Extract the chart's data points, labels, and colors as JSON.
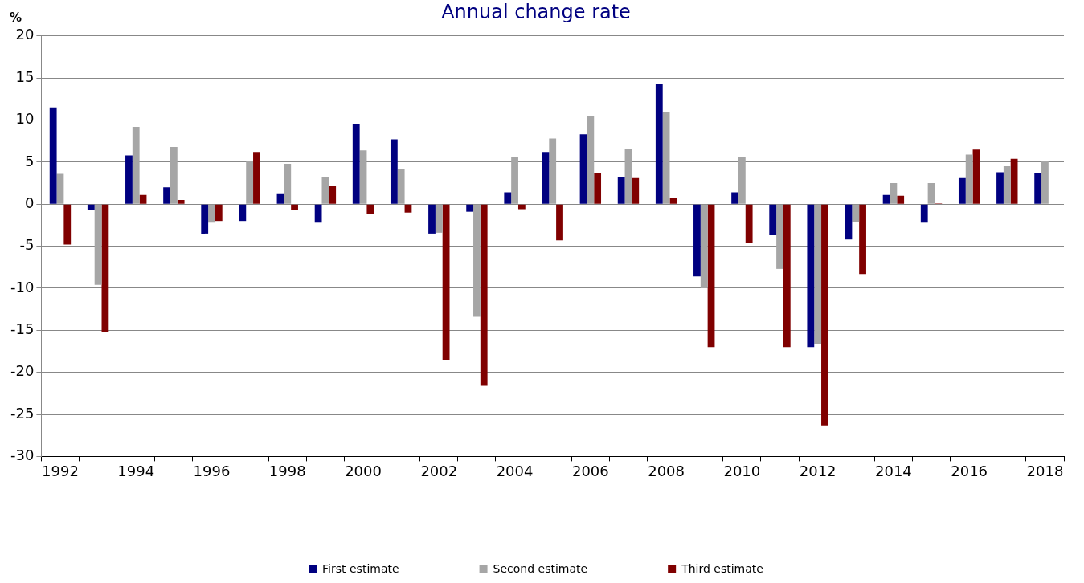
{
  "chart_data": {
    "type": "bar",
    "title": "Annual change rate",
    "ylabel": "%",
    "categories": [
      "1992",
      null,
      "1994",
      null,
      "1996",
      null,
      "1998",
      null,
      "2000",
      null,
      "2002",
      null,
      "2004",
      null,
      "2006",
      null,
      "2008",
      null,
      "2010",
      null,
      "2012",
      null,
      "2014",
      null,
      "2016",
      null,
      "2018"
    ],
    "series": [
      {
        "name": "First estimate",
        "color": "#000080",
        "values": [
          11.5,
          -0.7,
          5.8,
          2.0,
          -3.5,
          -2.0,
          1.3,
          -2.2,
          9.5,
          7.7,
          -3.5,
          -0.9,
          1.4,
          6.2,
          8.3,
          3.2,
          14.3,
          -8.6,
          1.4,
          -3.7,
          -17.0,
          -4.2,
          1.1,
          -2.2,
          3.1,
          3.8,
          3.7
        ]
      },
      {
        "name": "Second estimate",
        "color": "#a6a6a6",
        "values": [
          3.6,
          -9.6,
          9.2,
          6.8,
          -2.2,
          5.1,
          4.8,
          3.2,
          6.4,
          4.2,
          -3.4,
          -13.4,
          5.6,
          7.8,
          10.5,
          6.6,
          11.0,
          -10.0,
          5.6,
          -7.7,
          -16.7,
          -2.1,
          2.5,
          2.5,
          5.9,
          4.5,
          5.1
        ]
      },
      {
        "name": "Third estimate",
        "color": "#800000",
        "values": [
          -4.8,
          -15.2,
          1.1,
          0.5,
          -2.0,
          6.2,
          -0.7,
          2.2,
          -1.2,
          -1.0,
          -18.5,
          -21.6,
          -0.6,
          -4.3,
          3.7,
          3.1,
          0.7,
          -17.0,
          -4.6,
          -17.0,
          -26.3,
          -8.3,
          1.0,
          0.1,
          6.5,
          5.4,
          null
        ]
      }
    ],
    "ylim": [
      -30,
      20
    ],
    "yticks": [
      -30,
      -25,
      -20,
      -15,
      -10,
      -5,
      0,
      5,
      10,
      15,
      20
    ],
    "grid": "y",
    "legend": "bottom"
  }
}
